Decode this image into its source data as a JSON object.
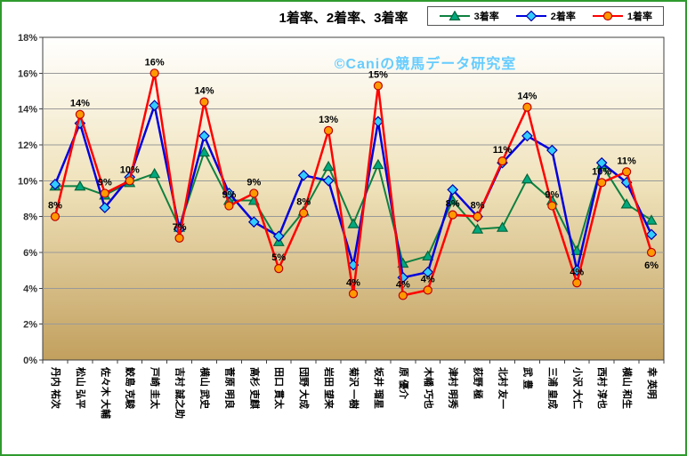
{
  "window": {
    "border_color": "#2E9B2E",
    "background": "#FFFFFF"
  },
  "chart_data": {
    "type": "line",
    "title": "1着率、2着率、3着率",
    "watermark": "©Caniの競馬データ研究室",
    "watermark_color": "#66CCFF",
    "ylim": [
      0,
      18
    ],
    "ytick_step": 2,
    "ytick_suffix": "%",
    "grid": true,
    "legend_position": "top-right",
    "categories": [
      "丹内 祐次",
      "松山 弘平",
      "佐々木 大輔",
      "鮫島 克駿",
      "戸崎 圭太",
      "吉村 誠之助",
      "横山 武史",
      "菅原 明良",
      "高杉 吏麒",
      "田口 貫太",
      "団野 大成",
      "岩田 望来",
      "菊沢 一樹",
      "坂井 瑠星",
      "原 優介",
      "木幡 巧也",
      "津村 明秀",
      "荻野 極",
      "北村 友一",
      "武 豊",
      "三浦 皇成",
      "小沢 大仁",
      "西村 淳也",
      "横山 和生",
      "幸 英明"
    ],
    "series": [
      {
        "name": "3着率",
        "marker": "triangle",
        "line_color": "#0E8040",
        "marker_fill": "#00A87E",
        "marker_stroke": "#00663A",
        "line_width": 2,
        "values": [
          9.7,
          9.7,
          9.2,
          9.9,
          10.4,
          7.4,
          11.6,
          8.9,
          8.9,
          6.6,
          8.3,
          10.8,
          7.6,
          10.9,
          5.4,
          5.8,
          8.9,
          7.3,
          7.4,
          10.1,
          8.9,
          6.1,
          10.9,
          8.7,
          7.8
        ]
      },
      {
        "name": "2着率",
        "marker": "diamond",
        "line_color": "#0000DD",
        "marker_fill": "#33CCFF",
        "marker_stroke": "#0000AA",
        "line_width": 2.5,
        "values": [
          9.8,
          13.2,
          8.5,
          10.2,
          14.2,
          7.3,
          12.5,
          9.3,
          7.7,
          6.9,
          10.3,
          10.0,
          5.3,
          13.3,
          4.6,
          4.9,
          9.5,
          8.0,
          11.0,
          12.5,
          11.7,
          5.0,
          11.0,
          9.9,
          7.0
        ]
      },
      {
        "name": "1着率",
        "marker": "circle",
        "line_color": "#FF0000",
        "marker_fill": "#FF9900",
        "marker_stroke": "#C00000",
        "line_width": 2.5,
        "values": [
          8.0,
          13.7,
          9.3,
          10.0,
          16.0,
          6.8,
          14.4,
          8.6,
          9.3,
          5.1,
          8.2,
          12.8,
          3.7,
          15.3,
          3.6,
          3.9,
          8.1,
          8.0,
          11.1,
          14.1,
          8.6,
          4.3,
          9.9,
          10.5,
          6.0
        ],
        "labels": [
          "8%",
          "14%",
          "9%",
          "10%",
          "16%",
          "7%",
          "14%",
          "9%",
          "9%",
          "5%",
          "8%",
          "13%",
          "4%",
          "15%",
          "4%",
          "4%",
          "8%",
          "8%",
          "11%",
          "14%",
          "9%",
          "4%",
          "10%",
          "11%",
          "6%"
        ],
        "labels_below": [
          24
        ]
      }
    ],
    "style": {
      "grid_color": "#999999",
      "axis_color": "#404040",
      "tick_label_color": "#333333",
      "category_label_color": "#000000",
      "data_label_color": "#000000",
      "plot_gradient": [
        {
          "at": "0%",
          "color": "#FFFFFE"
        },
        {
          "at": "45%",
          "color": "#F0E3BC"
        },
        {
          "at": "100%",
          "color": "#C2A05E"
        }
      ]
    }
  }
}
